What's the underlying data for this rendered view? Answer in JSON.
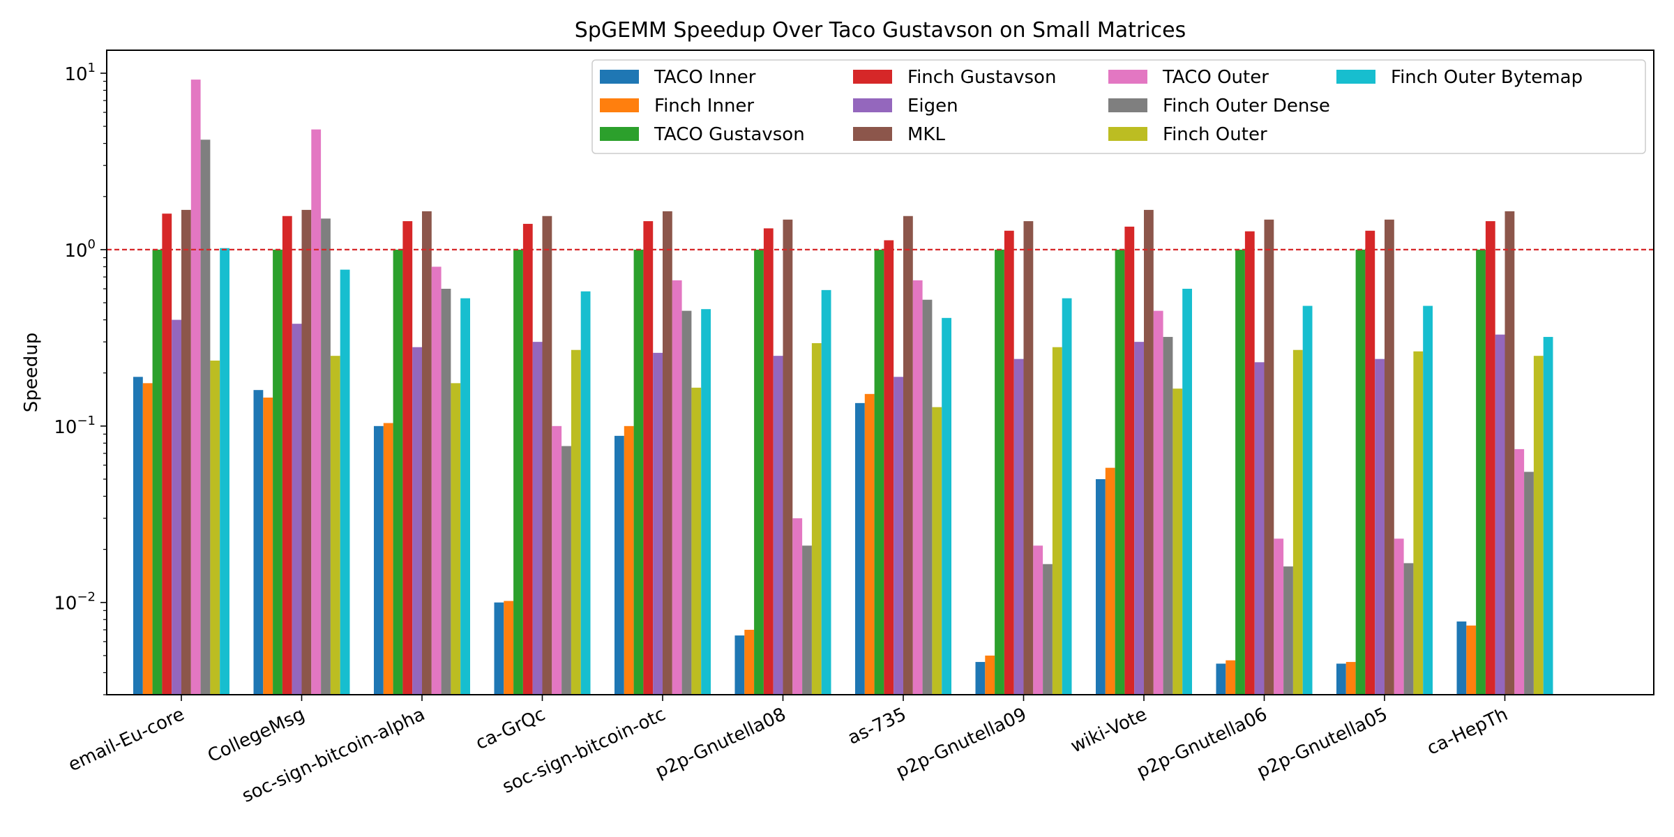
{
  "chart_data": {
    "type": "bar",
    "title": "SpGEMM Speedup Over Taco Gustavson on Small Matrices",
    "xlabel": "",
    "ylabel": "Speedup",
    "y_scale": "log",
    "ylim": [
      0.003,
      13.5
    ],
    "y_ticks": [
      {
        "value": 0.01,
        "base": "10",
        "exp": "−2"
      },
      {
        "value": 0.1,
        "base": "10",
        "exp": "−1"
      },
      {
        "value": 1,
        "base": "10",
        "exp": "0"
      },
      {
        "value": 10,
        "base": "10",
        "exp": "1"
      }
    ],
    "reference_line": {
      "value": 1,
      "style": "dashed",
      "color": "#d62728"
    },
    "legend": {
      "position": "top-right",
      "columns": 4
    },
    "grid": false,
    "categories": [
      "email-Eu-core",
      "CollegeMsg",
      "soc-sign-bitcoin-alpha",
      "ca-GrQc",
      "soc-sign-bitcoin-otc",
      "p2p-Gnutella08",
      "as-735",
      "p2p-Gnutella09",
      "wiki-Vote",
      "p2p-Gnutella06",
      "p2p-Gnutella05",
      "ca-HepTh"
    ],
    "series": [
      {
        "name": "TACO Inner",
        "color": "#1f77b4",
        "values": [
          0.19,
          0.16,
          0.1,
          0.01,
          0.088,
          0.0065,
          0.135,
          0.0046,
          0.05,
          0.0045,
          0.0045,
          0.0078
        ]
      },
      {
        "name": "Finch Inner",
        "color": "#ff7f0e",
        "values": [
          0.175,
          0.145,
          0.104,
          0.0102,
          0.1,
          0.007,
          0.152,
          0.005,
          0.058,
          0.0047,
          0.0046,
          0.0074
        ]
      },
      {
        "name": "TACO Gustavson",
        "color": "#2ca02c",
        "values": [
          1.0,
          1.0,
          1.0,
          1.0,
          1.0,
          1.0,
          1.0,
          1.0,
          1.0,
          1.0,
          1.0,
          1.0
        ]
      },
      {
        "name": "Finch Gustavson",
        "color": "#d62728",
        "values": [
          1.6,
          1.55,
          1.45,
          1.4,
          1.45,
          1.32,
          1.13,
          1.28,
          1.35,
          1.27,
          1.28,
          1.45
        ]
      },
      {
        "name": "Eigen",
        "color": "#9467bd",
        "values": [
          0.4,
          0.38,
          0.28,
          0.3,
          0.26,
          0.25,
          0.19,
          0.24,
          0.3,
          0.23,
          0.24,
          0.33
        ]
      },
      {
        "name": "MKL",
        "color": "#8c564b",
        "values": [
          1.68,
          1.68,
          1.65,
          1.55,
          1.65,
          1.48,
          1.55,
          1.45,
          1.68,
          1.48,
          1.48,
          1.65
        ]
      },
      {
        "name": "TACO Outer",
        "color": "#e377c2",
        "values": [
          9.2,
          4.8,
          0.8,
          0.1,
          0.67,
          0.03,
          0.67,
          0.021,
          0.45,
          0.023,
          0.023,
          0.074
        ]
      },
      {
        "name": "Finch Outer Dense",
        "color": "#7f7f7f",
        "values": [
          4.2,
          1.5,
          0.6,
          0.077,
          0.45,
          0.021,
          0.52,
          0.0165,
          0.32,
          0.016,
          0.0167,
          0.055
        ]
      },
      {
        "name": "Finch Outer",
        "color": "#bcbd22",
        "values": [
          0.235,
          0.25,
          0.175,
          0.27,
          0.165,
          0.295,
          0.128,
          0.28,
          0.163,
          0.27,
          0.265,
          0.25
        ]
      },
      {
        "name": "Finch Outer Bytemap",
        "color": "#17becf",
        "values": [
          1.02,
          0.77,
          0.53,
          0.58,
          0.46,
          0.59,
          0.41,
          0.53,
          0.6,
          0.48,
          0.48,
          0.32
        ]
      }
    ]
  }
}
